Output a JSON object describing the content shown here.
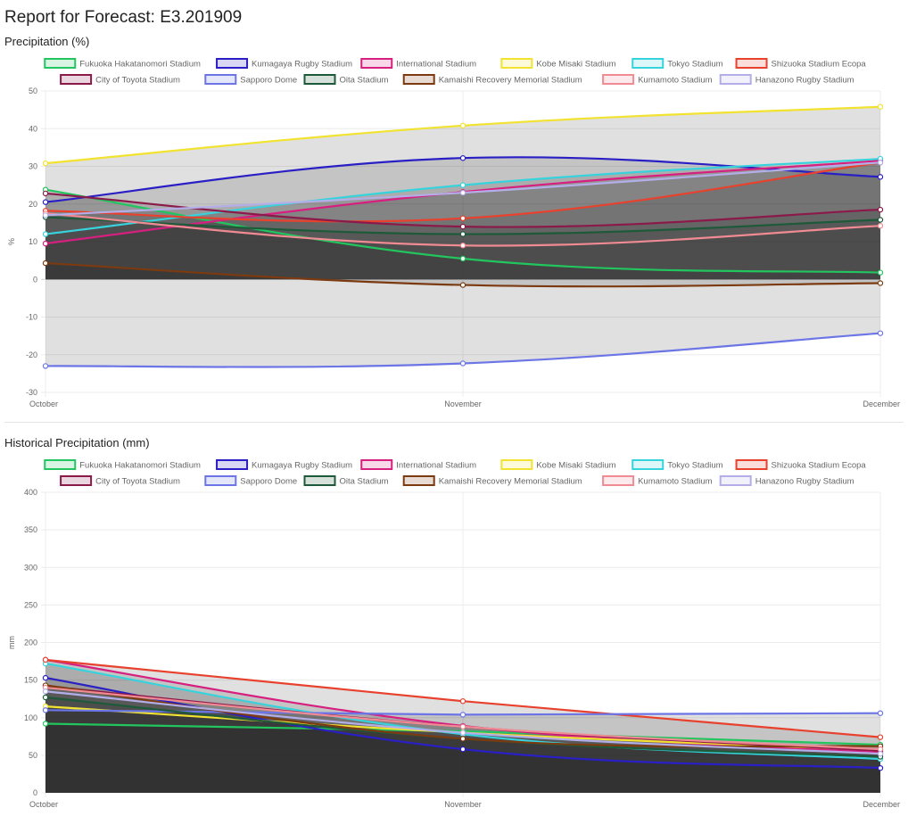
{
  "report": {
    "title": "Report for Forecast: E3.201909"
  },
  "chart_data": [
    {
      "type": "area",
      "title": "Precipitation (%)",
      "ylabel": "%",
      "xlabel": "",
      "categories": [
        "October",
        "November",
        "December"
      ],
      "ylim": [
        -30,
        50
      ],
      "yticks": [
        -30,
        -20,
        -10,
        0,
        10,
        20,
        30,
        40,
        50
      ],
      "grid": true,
      "legend_position": "top",
      "series": [
        {
          "name": "Fukuoka Hakatanomori Stadium",
          "color": "#22c55e",
          "values": [
            23.8,
            5.5,
            1.8
          ]
        },
        {
          "name": "Kumagaya Rugby Stadium",
          "color": "#2a1fc4",
          "values": [
            20.5,
            32.2,
            27.2
          ]
        },
        {
          "name": "International Stadium",
          "color": "#d61f7f",
          "values": [
            9.5,
            23.2,
            31.5
          ]
        },
        {
          "name": "Kobe Misaki Stadium",
          "color": "#f2e330",
          "values": [
            30.8,
            40.8,
            45.8
          ]
        },
        {
          "name": "Tokyo Stadium",
          "color": "#36d3dd",
          "values": [
            12.0,
            25.0,
            32.0
          ]
        },
        {
          "name": "Shizuoka Stadium Ecopa",
          "color": "#e8412e",
          "values": [
            18.2,
            16.2,
            31.0
          ]
        },
        {
          "name": "City of Toyota Stadium",
          "color": "#8b1a4a",
          "values": [
            22.8,
            14.0,
            18.5
          ]
        },
        {
          "name": "Sapporo Dome",
          "color": "#6b75e6",
          "values": [
            -23.0,
            -22.3,
            -14.3
          ]
        },
        {
          "name": "Oita Stadium",
          "color": "#1e5a3a",
          "values": [
            16.5,
            12.0,
            15.8
          ]
        },
        {
          "name": "Kamaishi Recovery Memorial Stadium",
          "color": "#7b3a10",
          "values": [
            4.3,
            -1.5,
            -1.0
          ]
        },
        {
          "name": "Kumamoto Stadium",
          "color": "#f08a93",
          "values": [
            17.5,
            9.0,
            14.2
          ]
        },
        {
          "name": "Hanazono Rugby Stadium",
          "color": "#b3aee8",
          "values": [
            17.0,
            23.0,
            31.0
          ]
        }
      ]
    },
    {
      "type": "area",
      "title": "Historical Precipitation (mm)",
      "ylabel": "mm",
      "xlabel": "",
      "categories": [
        "October",
        "November",
        "December"
      ],
      "ylim": [
        0,
        400
      ],
      "yticks": [
        0,
        50,
        100,
        150,
        200,
        250,
        300,
        350,
        400
      ],
      "grid": true,
      "legend_position": "top",
      "series": [
        {
          "name": "Fukuoka Hakatanomori Stadium",
          "color": "#22c55e",
          "values": [
            92,
            82,
            64
          ]
        },
        {
          "name": "Kumagaya Rugby Stadium",
          "color": "#2a1fc4",
          "values": [
            153,
            58,
            33
          ]
        },
        {
          "name": "International Stadium",
          "color": "#d61f7f",
          "values": [
            177,
            89,
            54
          ]
        },
        {
          "name": "Kobe Misaki Stadium",
          "color": "#f2e330",
          "values": [
            115,
            80,
            57
          ]
        },
        {
          "name": "Tokyo Stadium",
          "color": "#36d3dd",
          "values": [
            172,
            78,
            45
          ]
        },
        {
          "name": "Shizuoka Stadium Ecopa",
          "color": "#e8412e",
          "values": [
            177,
            122,
            74
          ]
        },
        {
          "name": "City of Toyota Stadium",
          "color": "#8b1a4a",
          "values": [
            142,
            88,
            56
          ]
        },
        {
          "name": "Sapporo Dome",
          "color": "#6b75e6",
          "values": [
            110,
            104,
            106
          ]
        },
        {
          "name": "Oita Stadium",
          "color": "#1e5a3a",
          "values": [
            127,
            72,
            48
          ]
        },
        {
          "name": "Kamaishi Recovery Memorial Stadium",
          "color": "#7b3a10",
          "values": [
            143,
            72,
            62
          ]
        },
        {
          "name": "Kumamoto Stadium",
          "color": "#f08a93",
          "values": [
            140,
            88,
            58
          ]
        },
        {
          "name": "Hanazono Rugby Stadium",
          "color": "#b3aee8",
          "values": [
            135,
            80,
            52
          ]
        }
      ]
    }
  ]
}
